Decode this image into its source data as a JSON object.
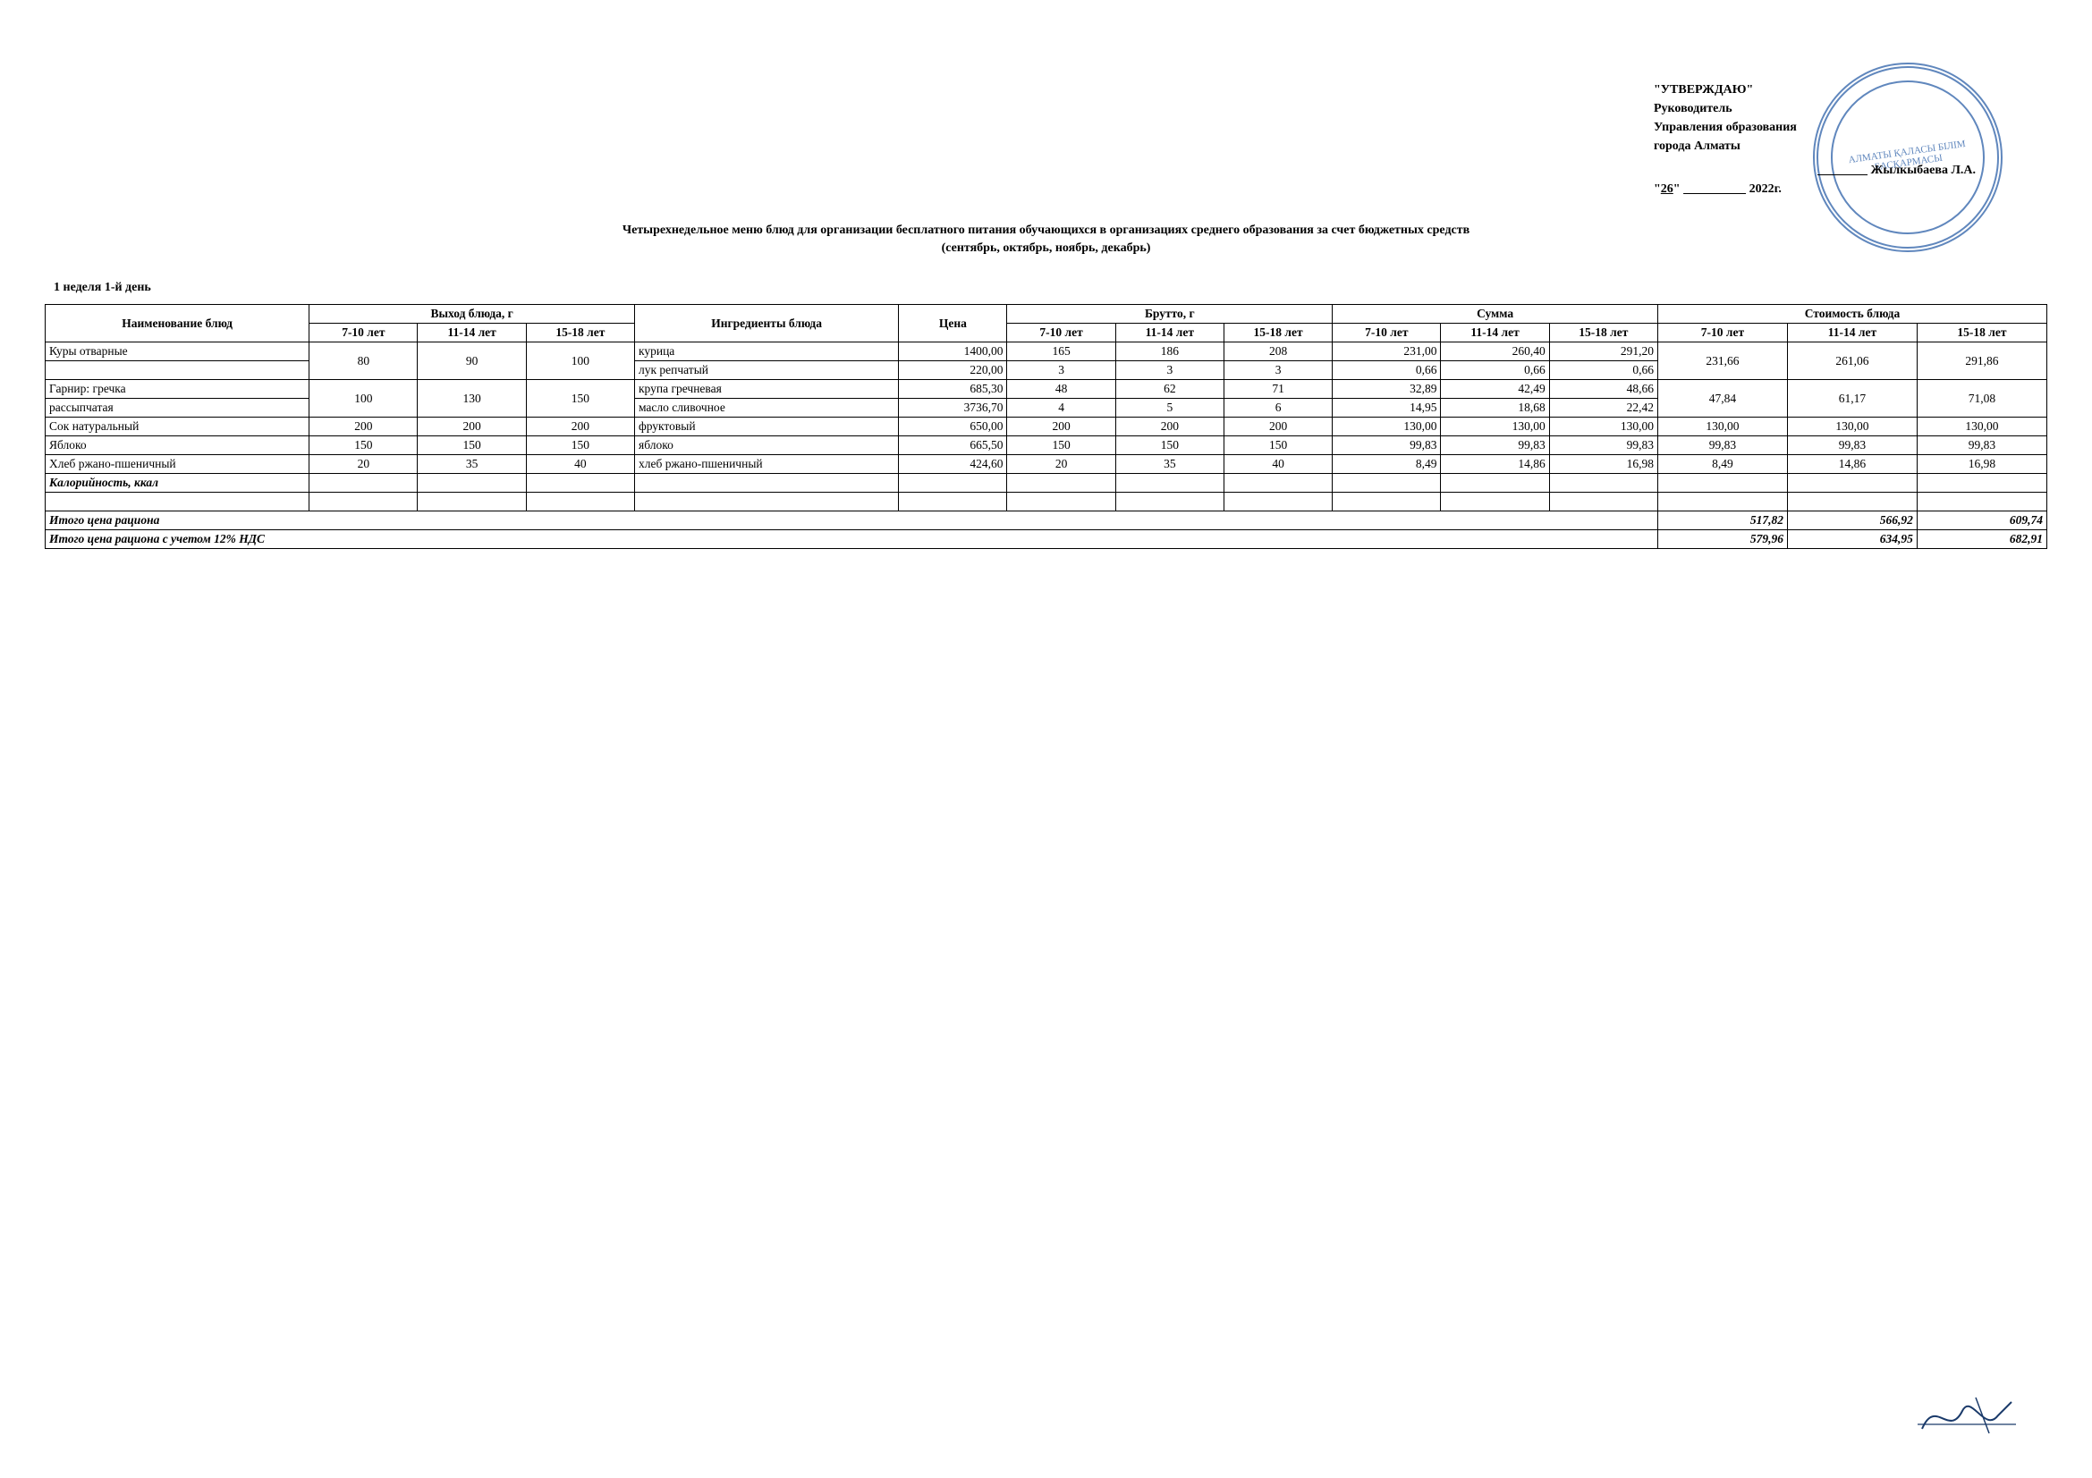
{
  "approval": {
    "line1": "\"УТВЕРЖДАЮ\"",
    "line2": "Руководитель",
    "line3": "Управления образования",
    "line4": "города Алматы",
    "name": "Жылкыбаева Л.А.",
    "date_day": "26",
    "date_year": "2022г."
  },
  "stamp_text": "АЛМАТЫ ҚАЛАСЫ БІЛІМ БАСҚАРМАСЫ",
  "title": {
    "line1": "Четырехнедельное меню блюд для организации бесплатного питания обучающихся в организациях среднего образования за счет бюджетных средств",
    "line2": "(сентябрь, октябрь, ноябрь, декабрь)"
  },
  "week_day": "1 неделя 1-й день",
  "headers": {
    "dish": "Наименование блюд",
    "yield_group": "Выход блюда, г",
    "ingredients": "Ингредиенты блюда",
    "price": "Цена",
    "brutto_group": "Брутто, г",
    "sum_group": "Сумма",
    "cost_group": "Стоимость блюда",
    "age1": "7-10 лет",
    "age2": "11-14 лет",
    "age3": "15-18 лет"
  },
  "rows": [
    {
      "dish": "Куры отварные",
      "y": [
        "80",
        "90",
        "100"
      ],
      "ingr": "курица",
      "price": "1400,00",
      "b": [
        "165",
        "186",
        "208"
      ],
      "s": [
        "231,00",
        "260,40",
        "291,20"
      ],
      "c": [
        "231,66",
        "261,06",
        "291,86"
      ],
      "span": 2
    },
    {
      "dish": "",
      "y": [
        "",
        "",
        ""
      ],
      "ingr": "лук репчатый",
      "price": "220,00",
      "b": [
        "3",
        "3",
        "3"
      ],
      "s": [
        "0,66",
        "0,66",
        "0,66"
      ],
      "c": [
        "",
        "",
        ""
      ]
    },
    {
      "dish": "Гарнир: гречка",
      "y": [
        "100",
        "130",
        "150"
      ],
      "ingr": "крупа гречневая",
      "price": "685,30",
      "b": [
        "48",
        "62",
        "71"
      ],
      "s": [
        "32,89",
        "42,49",
        "48,66"
      ],
      "c": [
        "47,84",
        "61,17",
        "71,08"
      ],
      "span": 2
    },
    {
      "dish": "рассыпчатая",
      "y": [
        "",
        "",
        ""
      ],
      "ingr": "масло сливочное",
      "price": "3736,70",
      "b": [
        "4",
        "5",
        "6"
      ],
      "s": [
        "14,95",
        "18,68",
        "22,42"
      ],
      "c": [
        "",
        "",
        ""
      ]
    },
    {
      "dish": "Сок натуральный",
      "y": [
        "200",
        "200",
        "200"
      ],
      "ingr": "фруктовый",
      "price": "650,00",
      "b": [
        "200",
        "200",
        "200"
      ],
      "s": [
        "130,00",
        "130,00",
        "130,00"
      ],
      "c": [
        "130,00",
        "130,00",
        "130,00"
      ]
    },
    {
      "dish": "Яблоко",
      "y": [
        "150",
        "150",
        "150"
      ],
      "ingr": "яблоко",
      "price": "665,50",
      "b": [
        "150",
        "150",
        "150"
      ],
      "s": [
        "99,83",
        "99,83",
        "99,83"
      ],
      "c": [
        "99,83",
        "99,83",
        "99,83"
      ]
    },
    {
      "dish": "Хлеб ржано-пшеничный",
      "y": [
        "20",
        "35",
        "40"
      ],
      "ingr": "хлеб ржано-пшеничный",
      "price": "424,60",
      "b": [
        "20",
        "35",
        "40"
      ],
      "s": [
        "8,49",
        "14,86",
        "16,98"
      ],
      "c": [
        "8,49",
        "14,86",
        "16,98"
      ]
    },
    {
      "dish": "Калорийность, ккал",
      "bold": true,
      "y": [
        "",
        "",
        ""
      ],
      "ingr": "",
      "price": "",
      "b": [
        "",
        "",
        ""
      ],
      "s": [
        "",
        "",
        ""
      ],
      "c": [
        "",
        "",
        ""
      ]
    },
    {
      "dish": "",
      "y": [
        "",
        "",
        ""
      ],
      "ingr": "",
      "price": "",
      "b": [
        "",
        "",
        ""
      ],
      "s": [
        "",
        "",
        ""
      ],
      "c": [
        "",
        "",
        ""
      ]
    }
  ],
  "total": {
    "label": "Итого цена рациона",
    "values": [
      "517,82",
      "566,92",
      "609,74"
    ]
  },
  "total_nds": {
    "label": "Итого цена рациона с учетом 12% НДС",
    "values": [
      "579,96",
      "634,95",
      "682,91"
    ]
  }
}
